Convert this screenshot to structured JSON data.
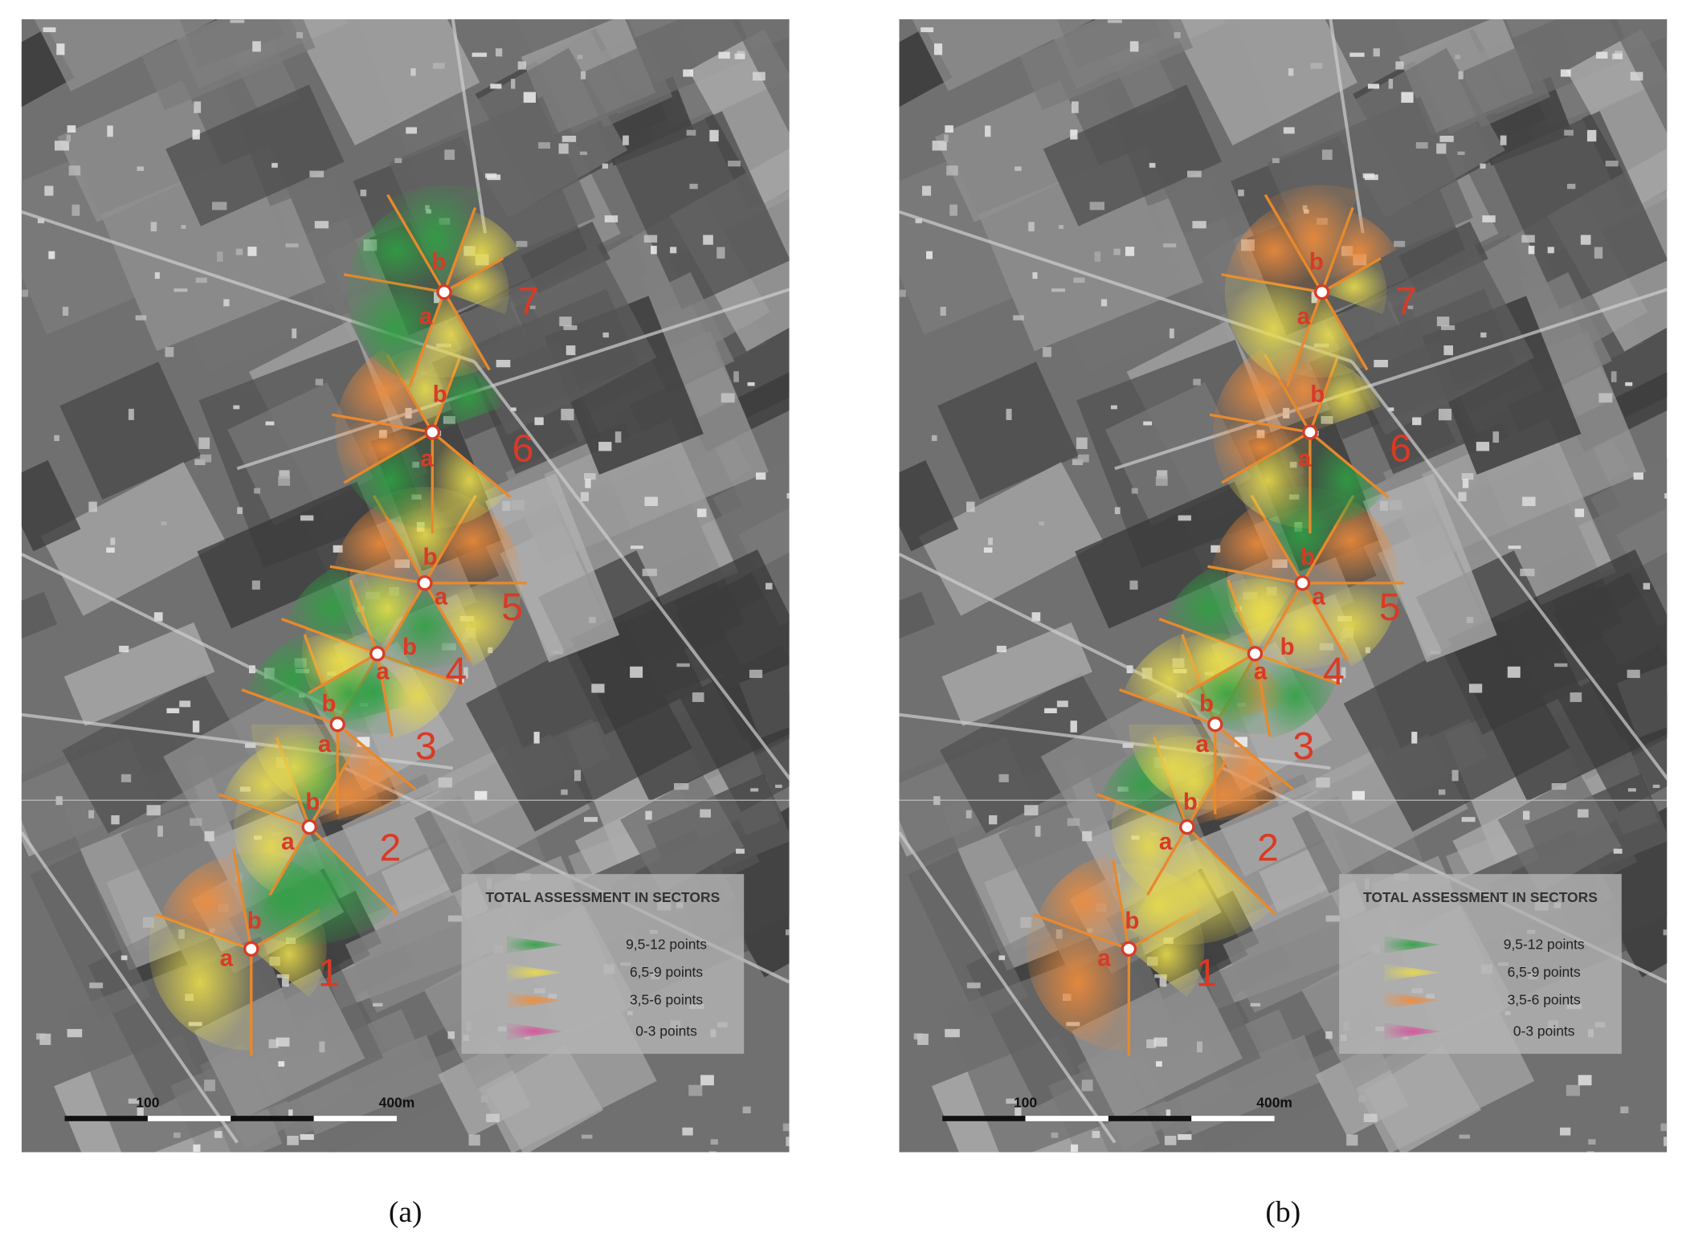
{
  "panels": [
    {
      "caption": "(a)",
      "points": [
        {
          "number": "1",
          "a": "a",
          "b": "b"
        },
        {
          "number": "2",
          "a": "a",
          "b": "b"
        },
        {
          "number": "3",
          "a": "a",
          "b": "b"
        },
        {
          "number": "4",
          "a": "a",
          "b": "b"
        },
        {
          "number": "5",
          "a": "a",
          "b": "b"
        },
        {
          "number": "6",
          "a": "a",
          "b": "b"
        },
        {
          "number": "7",
          "a": "a",
          "b": "b"
        }
      ],
      "legend": {
        "title": "TOTAL ASSESSMENT IN SECTORS",
        "entries": [
          "9,5-12 points",
          "6,5-9 points",
          "3,5-6 points",
          "0-3 points"
        ]
      },
      "scale": {
        "start": "100",
        "end": "400m"
      }
    },
    {
      "caption": "(b)",
      "points": [
        {
          "number": "1",
          "a": "a",
          "b": "b"
        },
        {
          "number": "2",
          "a": "a",
          "b": "b"
        },
        {
          "number": "3",
          "a": "a",
          "b": "b"
        },
        {
          "number": "4",
          "a": "a",
          "b": "b"
        },
        {
          "number": "5",
          "a": "a",
          "b": "b"
        },
        {
          "number": "6",
          "a": "a",
          "b": "b"
        },
        {
          "number": "7",
          "a": "a",
          "b": "b"
        }
      ],
      "legend": {
        "title": "TOTAL ASSESSMENT IN SECTORS",
        "entries": [
          "9,5-12 points",
          "6,5-9 points",
          "3,5-6 points",
          "0-3 points"
        ]
      },
      "scale": {
        "start": "100",
        "end": "400m"
      }
    }
  ]
}
